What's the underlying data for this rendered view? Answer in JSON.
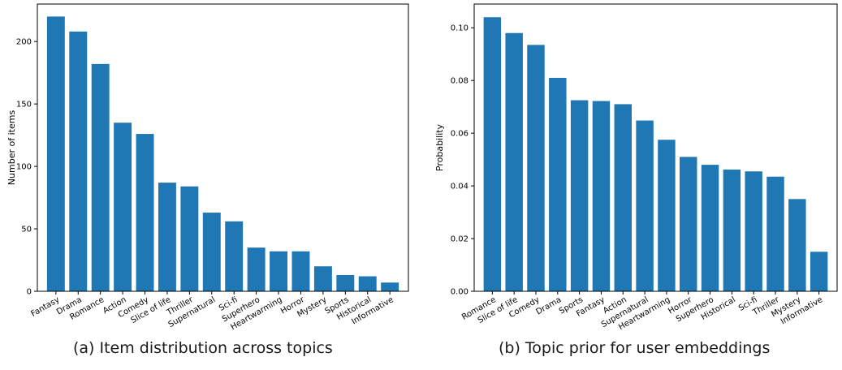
{
  "chart_data": [
    {
      "type": "bar",
      "title": "",
      "caption": "(a) Item distribution across topics",
      "xlabel": "",
      "ylabel": "Number of items",
      "ylim": [
        0,
        230
      ],
      "yticks": [
        0,
        50,
        100,
        150,
        200
      ],
      "ytick_labels": [
        "0",
        "50",
        "100",
        "150",
        "200"
      ],
      "grid": false,
      "color": "#1f77b4",
      "categories": [
        "Fantasy",
        "Drama",
        "Romance",
        "Action",
        "Comedy",
        "Slice of life",
        "Thriller",
        "Supernatural",
        "Sci-fi",
        "Superhero",
        "Heartwarming",
        "Horror",
        "Mystery",
        "Sports",
        "Historical",
        "Informative"
      ],
      "values": [
        220,
        208,
        182,
        135,
        126,
        87,
        84,
        63,
        56,
        35,
        32,
        32,
        20,
        13,
        12,
        7
      ]
    },
    {
      "type": "bar",
      "title": "",
      "caption": "(b) Topic prior for user embeddings",
      "xlabel": "",
      "ylabel": "Probability",
      "ylim": [
        0,
        0.109
      ],
      "yticks": [
        0,
        0.02,
        0.04,
        0.06,
        0.08,
        0.1
      ],
      "ytick_labels": [
        "0.00",
        "0.02",
        "0.04",
        "0.06",
        "0.08",
        "0.10"
      ],
      "grid": false,
      "color": "#1f77b4",
      "categories": [
        "Romance",
        "Slice of life",
        "Comedy",
        "Drama",
        "Sports",
        "Fantasy",
        "Action",
        "Supernatural",
        "Heartwarming",
        "Horror",
        "Superhero",
        "Historical",
        "Sci-fi",
        "Thriller",
        "Mystery",
        "Informative"
      ],
      "values": [
        0.104,
        0.098,
        0.0935,
        0.081,
        0.0725,
        0.0722,
        0.071,
        0.0648,
        0.0575,
        0.051,
        0.048,
        0.0462,
        0.0455,
        0.0435,
        0.035,
        0.015
      ]
    }
  ]
}
